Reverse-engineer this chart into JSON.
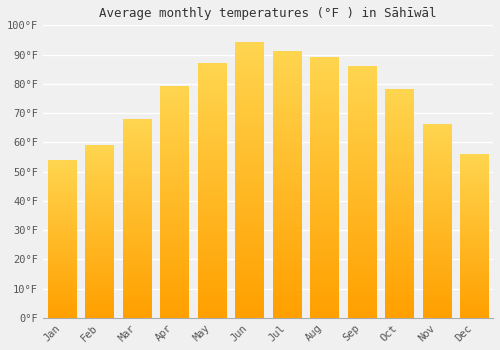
{
  "title": "Average monthly temperatures (°F ) in Sāhīwāl",
  "months": [
    "Jan",
    "Feb",
    "Mar",
    "Apr",
    "May",
    "Jun",
    "Jul",
    "Aug",
    "Sep",
    "Oct",
    "Nov",
    "Dec"
  ],
  "values": [
    54,
    59,
    68,
    79,
    87,
    94,
    91,
    89,
    86,
    78,
    66,
    56
  ],
  "bar_color_top": "#FFD54F",
  "bar_color_bottom": "#FFA000",
  "ylim": [
    0,
    100
  ],
  "yticks": [
    0,
    10,
    20,
    30,
    40,
    50,
    60,
    70,
    80,
    90,
    100
  ],
  "ytick_labels": [
    "0°F",
    "10°F",
    "20°F",
    "30°F",
    "40°F",
    "50°F",
    "60°F",
    "70°F",
    "80°F",
    "90°F",
    "100°F"
  ],
  "background_color": "#f0f0f0",
  "plot_bg_color": "#f0f0f0",
  "grid_color": "#ffffff",
  "title_fontsize": 9,
  "tick_fontsize": 7.5,
  "font_family": "monospace"
}
